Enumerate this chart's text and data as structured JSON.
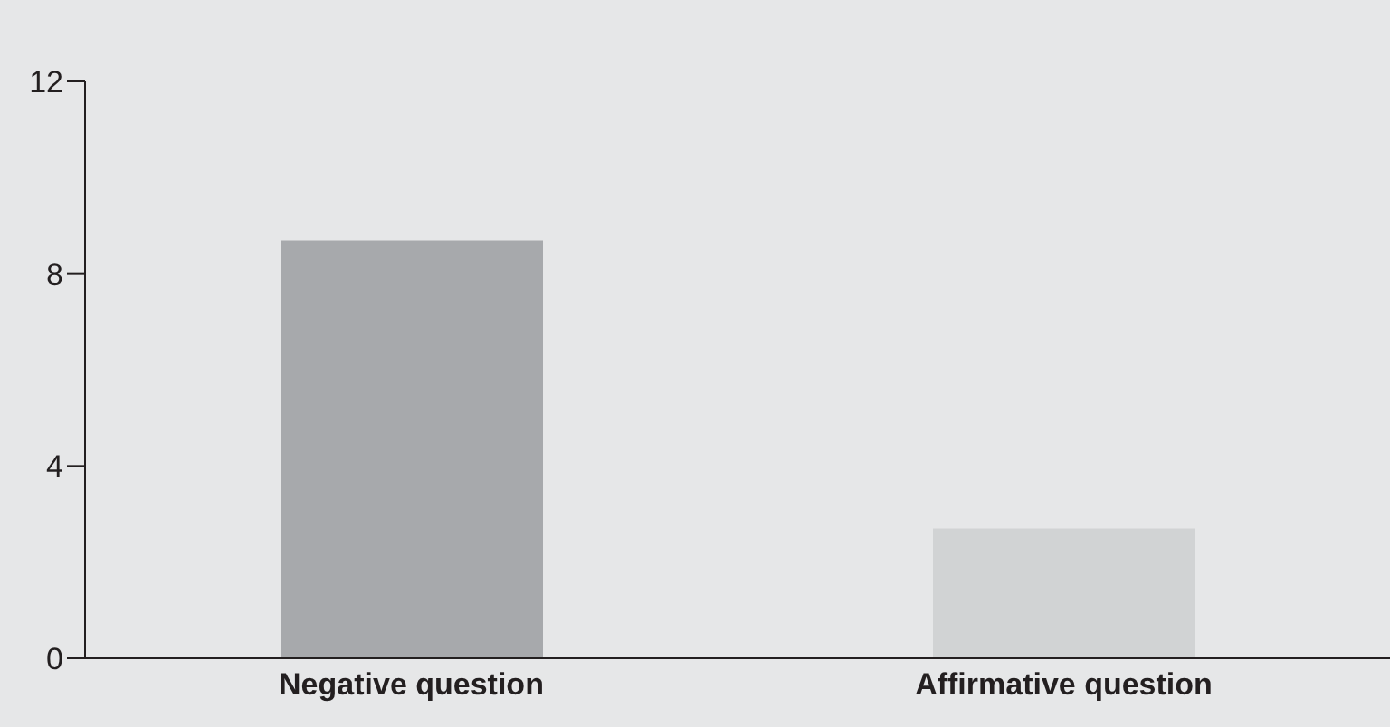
{
  "chart_data": {
    "type": "bar",
    "categories": [
      "Negative question",
      "Affirmative question"
    ],
    "values": [
      8.7,
      2.7
    ],
    "colors": [
      "#a7a9ac",
      "#d1d3d4"
    ],
    "ylim": [
      0,
      12
    ],
    "yticks": [
      0,
      4,
      8,
      12
    ],
    "grid": false
  }
}
